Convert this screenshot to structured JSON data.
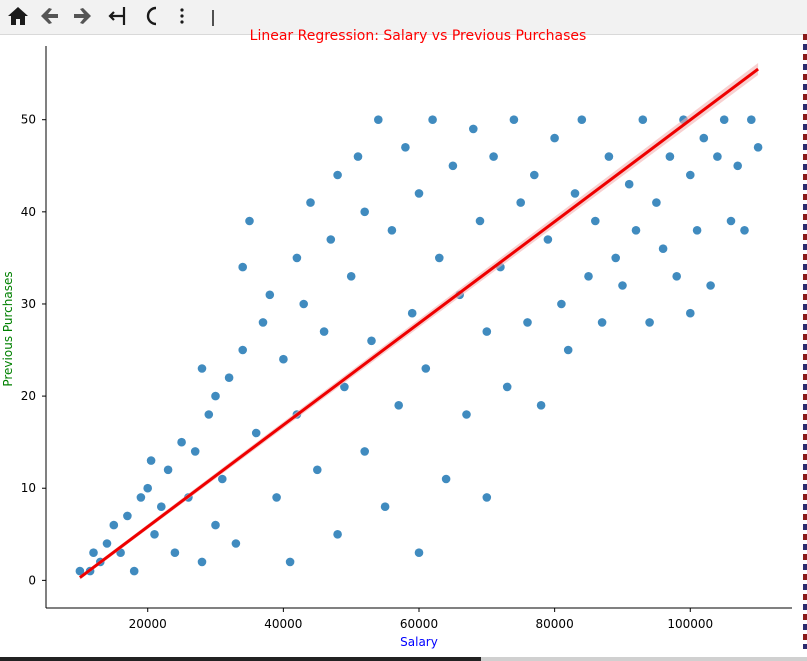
{
  "toolbar": {
    "buttons": [
      "home-icon",
      "back-icon",
      "forward-icon",
      "pan-icon",
      "zoom-icon",
      "more-icon",
      "cursor-icon"
    ]
  },
  "colors": {
    "points": "#1f77b4",
    "line": "#ee0000",
    "title": "#ff0000",
    "xlabel": "#0000ff",
    "ylabel": "#008000"
  },
  "chart_data": {
    "type": "scatter",
    "title": "Linear Regression: Salary vs Previous Purchases",
    "xlabel": "Salary",
    "ylabel": "Previous Purchases",
    "xlim": [
      5000,
      115000
    ],
    "ylim": [
      -3,
      58
    ],
    "x_ticks": [
      20000,
      40000,
      60000,
      80000,
      100000
    ],
    "y_ticks": [
      0,
      10,
      20,
      30,
      40,
      50
    ],
    "grid": false,
    "regression_line": {
      "x": [
        10000,
        110000
      ],
      "y": [
        0.3,
        55.5
      ]
    },
    "series": [
      {
        "points": [
          [
            10000,
            1
          ],
          [
            11500,
            1
          ],
          [
            12000,
            3
          ],
          [
            13000,
            2
          ],
          [
            14000,
            4
          ],
          [
            15000,
            6
          ],
          [
            16000,
            3
          ],
          [
            17000,
            7
          ],
          [
            18000,
            1
          ],
          [
            19000,
            9
          ],
          [
            20000,
            10
          ],
          [
            20500,
            13
          ],
          [
            21000,
            5
          ],
          [
            22000,
            8
          ],
          [
            23000,
            12
          ],
          [
            24000,
            3
          ],
          [
            25000,
            15
          ],
          [
            26000,
            9
          ],
          [
            27000,
            14
          ],
          [
            28000,
            2
          ],
          [
            28000,
            23
          ],
          [
            29000,
            18
          ],
          [
            30000,
            20
          ],
          [
            30000,
            6
          ],
          [
            31000,
            11
          ],
          [
            32000,
            22
          ],
          [
            33000,
            4
          ],
          [
            34000,
            25
          ],
          [
            34000,
            34
          ],
          [
            35000,
            39
          ],
          [
            36000,
            16
          ],
          [
            37000,
            28
          ],
          [
            38000,
            31
          ],
          [
            39000,
            9
          ],
          [
            40000,
            24
          ],
          [
            41000,
            2
          ],
          [
            42000,
            35
          ],
          [
            42000,
            18
          ],
          [
            43000,
            30
          ],
          [
            44000,
            41
          ],
          [
            45000,
            12
          ],
          [
            46000,
            27
          ],
          [
            47000,
            37
          ],
          [
            48000,
            44
          ],
          [
            48000,
            5
          ],
          [
            49000,
            21
          ],
          [
            50000,
            33
          ],
          [
            51000,
            46
          ],
          [
            52000,
            14
          ],
          [
            52000,
            40
          ],
          [
            53000,
            26
          ],
          [
            54000,
            50
          ],
          [
            55000,
            8
          ],
          [
            56000,
            38
          ],
          [
            57000,
            19
          ],
          [
            58000,
            47
          ],
          [
            59000,
            29
          ],
          [
            60000,
            3
          ],
          [
            60000,
            42
          ],
          [
            61000,
            23
          ],
          [
            62000,
            50
          ],
          [
            63000,
            35
          ],
          [
            64000,
            11
          ],
          [
            65000,
            45
          ],
          [
            66000,
            31
          ],
          [
            67000,
            18
          ],
          [
            68000,
            49
          ],
          [
            69000,
            39
          ],
          [
            70000,
            9
          ],
          [
            70000,
            27
          ],
          [
            71000,
            46
          ],
          [
            72000,
            34
          ],
          [
            73000,
            21
          ],
          [
            74000,
            50
          ],
          [
            75000,
            41
          ],
          [
            76000,
            28
          ],
          [
            77000,
            44
          ],
          [
            78000,
            19
          ],
          [
            79000,
            37
          ],
          [
            80000,
            48
          ],
          [
            81000,
            30
          ],
          [
            82000,
            25
          ],
          [
            83000,
            42
          ],
          [
            84000,
            50
          ],
          [
            85000,
            33
          ],
          [
            86000,
            39
          ],
          [
            87000,
            28
          ],
          [
            88000,
            46
          ],
          [
            89000,
            35
          ],
          [
            90000,
            32
          ],
          [
            91000,
            43
          ],
          [
            92000,
            38
          ],
          [
            93000,
            50
          ],
          [
            94000,
            28
          ],
          [
            95000,
            41
          ],
          [
            96000,
            36
          ],
          [
            97000,
            46
          ],
          [
            98000,
            33
          ],
          [
            99000,
            50
          ],
          [
            100000,
            29
          ],
          [
            100000,
            44
          ],
          [
            101000,
            38
          ],
          [
            102000,
            48
          ],
          [
            103000,
            32
          ],
          [
            104000,
            46
          ],
          [
            105000,
            50
          ],
          [
            106000,
            39
          ],
          [
            107000,
            45
          ],
          [
            108000,
            38
          ],
          [
            109000,
            50
          ],
          [
            110000,
            47
          ]
        ]
      }
    ]
  }
}
